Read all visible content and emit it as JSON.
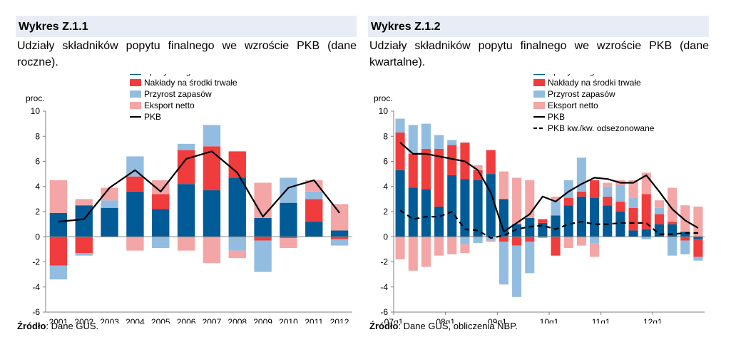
{
  "colors": {
    "consumption": "#005b96",
    "investment": "#f03c3c",
    "inventories": "#93bde0",
    "net_exports": "#f4a5a5",
    "gdp": "#000000",
    "title_bg": "#e8edf5"
  },
  "left": {
    "title": "Wykres Z.1.1",
    "subtitle": "Udziały składników popytu finalnego we wzroście PKB (dane roczne).",
    "source_label": "Źródło",
    "source_text": ": Dane GUS."
  },
  "right": {
    "title": "Wykres Z.1.2",
    "subtitle": "Udziały składników popytu finalnego we wzroście PKB (dane kwartalne).",
    "source_label": "Źródło",
    "source_text": ": Dane GUS, obliczenia NBP."
  },
  "chart_data": [
    {
      "type": "bar",
      "stacked": true,
      "ylabel": "proc.",
      "ylim": [
        -6,
        10
      ],
      "yticks": [
        -6,
        -4,
        -2,
        0,
        2,
        4,
        6,
        8,
        10
      ],
      "grid": false,
      "legend_position": "top-center",
      "categories": [
        "2001",
        "2002",
        "2003",
        "2004",
        "2005",
        "2006",
        "2007",
        "2008",
        "2009",
        "2010",
        "2011",
        "2012"
      ],
      "series": [
        {
          "name": "Spożycie ogółem",
          "type": "bar",
          "color_key": "consumption",
          "values": [
            1.9,
            2.5,
            2.3,
            3.6,
            2.2,
            4.2,
            3.7,
            4.7,
            1.5,
            2.7,
            1.2,
            0.5
          ]
        },
        {
          "name": "Nakłady na środki trwałe",
          "type": "bar",
          "color_key": "investment",
          "values": [
            -2.3,
            -1.3,
            0.0,
            1.2,
            1.2,
            2.7,
            3.5,
            2.1,
            -0.3,
            -0.1,
            1.8,
            -0.2
          ]
        },
        {
          "name": "Przyrost zapasów",
          "type": "bar",
          "color_key": "inventories",
          "values": [
            -1.1,
            -0.2,
            0.6,
            1.6,
            -0.9,
            0.5,
            1.7,
            -1.1,
            -2.5,
            2.0,
            0.6,
            -0.5
          ]
        },
        {
          "name": "Eksport netto",
          "type": "bar",
          "color_key": "net_exports",
          "values": [
            2.6,
            0.5,
            1.0,
            -1.1,
            1.1,
            -1.1,
            -2.1,
            -0.6,
            2.8,
            -0.8,
            0.9,
            2.1
          ]
        },
        {
          "name": "PKB",
          "type": "line",
          "color_key": "gdp",
          "dash": false,
          "values": [
            1.2,
            1.4,
            3.9,
            5.3,
            3.6,
            6.2,
            6.8,
            5.1,
            1.6,
            3.9,
            4.5,
            1.9
          ]
        }
      ]
    },
    {
      "type": "bar",
      "stacked": true,
      "ylabel": "proc.",
      "ylim": [
        -6,
        10
      ],
      "yticks": [
        -6,
        -4,
        -2,
        0,
        2,
        4,
        6,
        8,
        10
      ],
      "grid": false,
      "legend_position": "top-center",
      "categories": [
        "07q1",
        "07q2",
        "07q3",
        "07q4",
        "08q1",
        "08q2",
        "08q3",
        "08q4",
        "09q1",
        "09q2",
        "09q3",
        "09q4",
        "10q1",
        "10q2",
        "10q3",
        "10q4",
        "11q1",
        "11q2",
        "11q3",
        "11q4",
        "12q1",
        "12q2",
        "12q3",
        "12q4"
      ],
      "tick_labels": {
        "0": "07q1",
        "4": "08q1",
        "8": "09q1",
        "12": "10q1",
        "16": "11q1",
        "20": "12q1"
      },
      "series": [
        {
          "name": "Spożycie ogółem",
          "type": "bar",
          "color_key": "consumption",
          "values": [
            5.3,
            3.9,
            3.8,
            2.4,
            4.9,
            4.6,
            4.5,
            5.0,
            3.0,
            1.0,
            1.5,
            1.1,
            1.7,
            2.5,
            3.2,
            3.1,
            2.5,
            2.0,
            0.5,
            0.6,
            1.0,
            1.0,
            0.4,
            -0.2
          ]
        },
        {
          "name": "Nakłady na środki trwałe",
          "type": "bar",
          "color_key": "investment",
          "values": [
            3.0,
            2.7,
            3.2,
            4.6,
            2.4,
            2.9,
            0.8,
            1.9,
            -0.4,
            -0.7,
            -0.4,
            0.3,
            -1.5,
            0.6,
            0.4,
            1.4,
            0.7,
            0.8,
            1.8,
            2.8,
            0.8,
            0.2,
            -0.3,
            -1.4
          ]
        },
        {
          "name": "Przyrost zapasów",
          "type": "bar",
          "color_key": "inventories",
          "values": [
            1.1,
            2.3,
            2.0,
            1.1,
            0.4,
            -0.6,
            -0.5,
            -0.3,
            -3.4,
            -4.1,
            -2.5,
            -0.1,
            1.1,
            1.4,
            2.7,
            -0.5,
            0.8,
            1.3,
            0.8,
            -0.2,
            0.5,
            -1.5,
            -1.1,
            -0.3
          ]
        },
        {
          "name": "Eksport netto",
          "type": "bar",
          "color_key": "net_exports",
          "values": [
            -1.8,
            -2.7,
            -2.4,
            -1.5,
            -1.4,
            -0.7,
            0.4,
            -0.1,
            2.2,
            3.7,
            3.0,
            0.0,
            0.4,
            -0.9,
            -0.7,
            -1.1,
            0.3,
            0.4,
            1.4,
            1.7,
            0.6,
            2.7,
            2.1,
            2.4
          ]
        },
        {
          "name": "PKB",
          "type": "line",
          "color_key": "gdp",
          "dash": false,
          "values": [
            7.5,
            6.6,
            6.6,
            6.4,
            6.2,
            6.0,
            5.3,
            3.5,
            0.4,
            1.1,
            1.8,
            3.2,
            2.8,
            3.6,
            4.2,
            4.7,
            4.6,
            4.3,
            4.3,
            4.9,
            3.6,
            2.2,
            1.3,
            0.7
          ]
        },
        {
          "name": "PKB kw./kw. odsezonowane",
          "type": "line",
          "color_key": "gdp",
          "dash": true,
          "values": [
            2.1,
            1.4,
            1.6,
            1.6,
            2.0,
            0.6,
            0.5,
            -0.1,
            0.1,
            0.6,
            0.8,
            0.9,
            0.6,
            1.0,
            1.2,
            1.0,
            1.0,
            1.1,
            1.1,
            1.1,
            0.2,
            0.2,
            0.3,
            0.3
          ]
        }
      ]
    }
  ]
}
